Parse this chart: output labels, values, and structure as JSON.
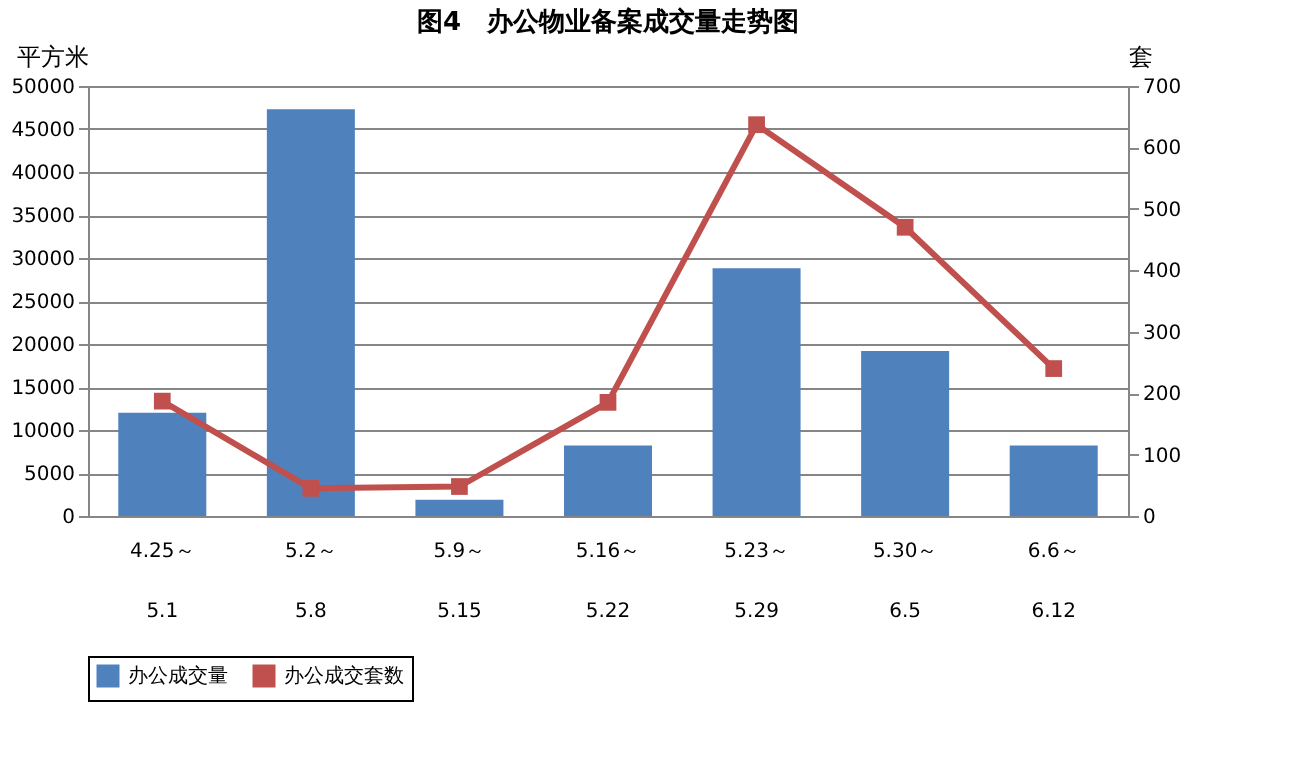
{
  "chart_data": {
    "type": "bar",
    "title": "图4　办公物业备案成交量走势图",
    "ylabel": "平方米",
    "y2label": "套",
    "categories": [
      "4.25～\n5.1",
      "5.2～\n5.8",
      "5.9～\n5.15",
      "5.16～\n5.22",
      "5.23～\n5.29",
      "5.30～\n6.5",
      "6.6～\n6.12"
    ],
    "series": [
      {
        "name": "办公成交量",
        "color": "#4f81bd",
        "values": [
          12000,
          47300,
          1900,
          8200,
          28800,
          19200,
          8200
        ]
      },
      {
        "name": "办公成交套数",
        "type": "line",
        "axis": "y2",
        "marker": "square",
        "color": "#c0504d",
        "values": [
          187,
          45,
          48,
          185,
          637,
          470,
          240
        ]
      }
    ],
    "ylim": [
      0,
      50000
    ],
    "yticks": [
      0,
      5000,
      10000,
      15000,
      20000,
      25000,
      30000,
      35000,
      40000,
      45000,
      50000
    ],
    "y2lim": [
      0,
      700
    ],
    "y2ticks": [
      0,
      100,
      200,
      300,
      400,
      500,
      600,
      700
    ],
    "grid": "y",
    "legend": "bottom"
  }
}
